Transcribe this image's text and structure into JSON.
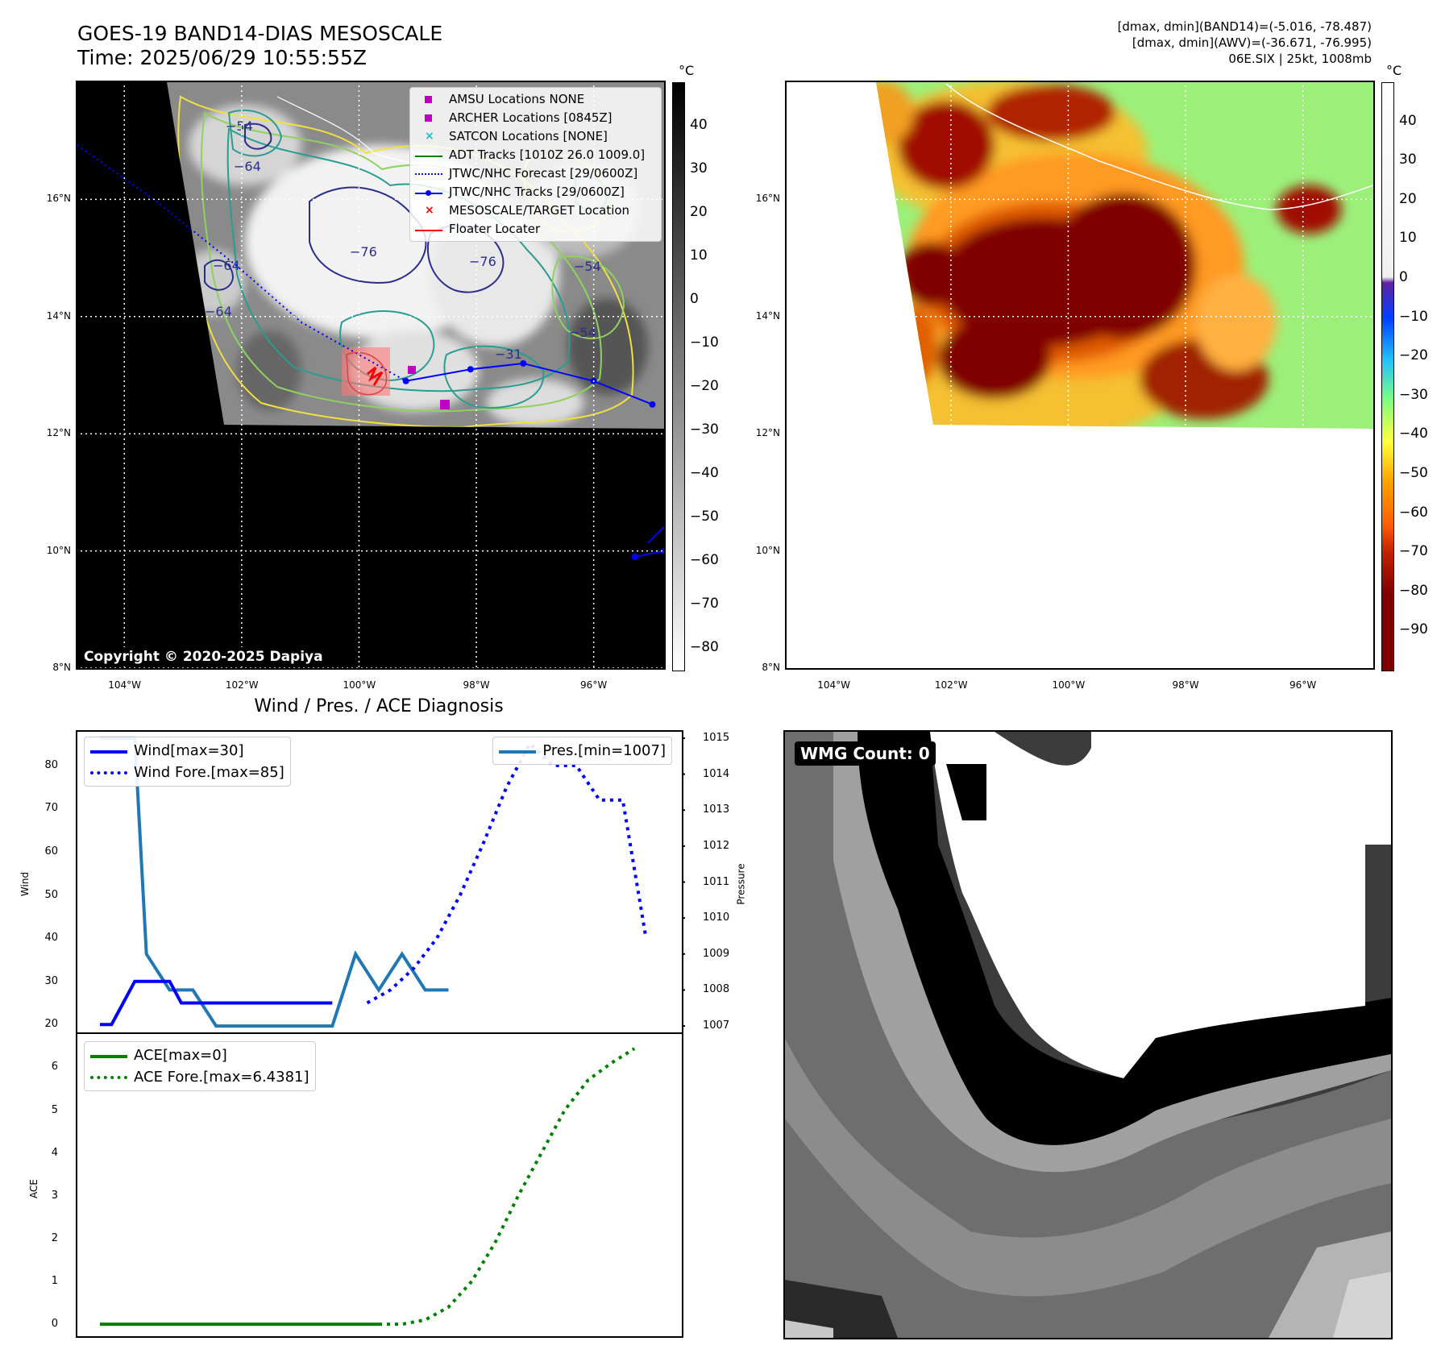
{
  "header": {
    "title_line1": "GOES-19 BAND14-DIAS MESOSCALE",
    "title_line2": "Time: 2025/06/29 10:55:55Z",
    "info_line1": "[dmax, dmin](BAND14)=(-5.016, -78.487)",
    "info_line2": "[dmax, dmin](AWV)=(-36.671, -76.995)",
    "info_line3": "06E.SIX | 25kt, 1008mb"
  },
  "map_axes": {
    "lat_labels": [
      "16°N",
      "14°N",
      "12°N",
      "10°N",
      "8°N"
    ],
    "lon_labels": [
      "104°W",
      "102°W",
      "100°W",
      "98°W",
      "96°W"
    ],
    "lat_values": [
      16,
      14,
      12,
      10,
      8
    ],
    "lon_values": [
      -104,
      -102,
      -100,
      -98,
      -96
    ],
    "extent": {
      "lon_min": -104.8,
      "lon_max": -94.8,
      "lat_min": 8.0,
      "lat_max": 18.0
    }
  },
  "ir_panel": {
    "copyright": "Copyright © 2020-2025 Dapiya",
    "contour_labels": [
      "−54",
      "−64",
      "−76",
      "−76",
      "−54",
      "−64",
      "−31",
      "−54",
      "−64"
    ],
    "colorbar": {
      "unit": "°C",
      "ticks": [
        "40",
        "30",
        "20",
        "10",
        "0",
        "−10",
        "−20",
        "−30",
        "−40",
        "−50",
        "−60",
        "−70",
        "−80"
      ],
      "range": [
        -85,
        50
      ],
      "colors": {
        "warm": "#000000",
        "cold": "#ffffff"
      }
    },
    "legend": [
      {
        "label": "AMSU Locations NONE",
        "symbol": "square",
        "color": "#c000c0"
      },
      {
        "label": "ARCHER Locations [0845Z]",
        "symbol": "square",
        "color": "#c000c0"
      },
      {
        "label": "SATCON Locations [NONE]",
        "symbol": "x",
        "color": "#17becf"
      },
      {
        "label": "ADT Tracks [1010Z 26.0 1009.0]",
        "symbol": "line",
        "color": "#008000"
      },
      {
        "label": "JTWC/NHC Forecast [29/0600Z]",
        "symbol": "dotted",
        "color": "#0000ff"
      },
      {
        "label": "JTWC/NHC Tracks [29/0600Z]",
        "symbol": "line-dot",
        "color": "#0000ff"
      },
      {
        "label": "MESOSCALE/TARGET Location",
        "symbol": "x",
        "color": "#ff0000"
      },
      {
        "label": "Floater Locater",
        "symbol": "line",
        "color": "#ff0000"
      }
    ],
    "track_points": [
      {
        "lon": -99.2,
        "lat": 12.9
      },
      {
        "lon": -98.1,
        "lat": 13.1
      },
      {
        "lon": -97.2,
        "lat": 13.2
      },
      {
        "lon": -96.0,
        "lat": 12.9
      },
      {
        "lon": -95.0,
        "lat": 12.5
      }
    ],
    "second_track": [
      {
        "lon": -95.3,
        "lat": 9.9
      },
      {
        "lon": -94.8,
        "lat": 10.0
      }
    ]
  },
  "awv_panel": {
    "colorbar": {
      "unit": "°C",
      "ticks": [
        "40",
        "30",
        "20",
        "10",
        "0",
        "−10",
        "−20",
        "−30",
        "−40",
        "−50",
        "−60",
        "−70",
        "−80",
        "−90"
      ],
      "range": [
        -100,
        50
      ],
      "colors": {
        "dark_red": "#800000",
        "orange": "#ff8c00",
        "yellow": "#ffff40",
        "green": "#80ff80",
        "cyan": "#40e0ff",
        "blue": "#0060ff",
        "purple": "#6020a0",
        "white": "#ffffff"
      }
    }
  },
  "diag_panel": {
    "title": "Wind / Pres. / ACE Diagnosis",
    "wind_ylabel": "Wind",
    "pressure_ylabel": "Pressure",
    "ace_ylabel": "ACE",
    "wind_ticks": [
      "80",
      "70",
      "60",
      "50",
      "40",
      "30",
      "20"
    ],
    "pressure_ticks": [
      "1015",
      "1014",
      "1013",
      "1012",
      "1011",
      "1010",
      "1009",
      "1008",
      "1007"
    ],
    "ace_ticks": [
      "6",
      "5",
      "4",
      "3",
      "2",
      "1",
      "0"
    ],
    "legend_wind": [
      {
        "label": "Wind[max=30]",
        "style": "solid",
        "color": "#0000ff"
      },
      {
        "label": "Wind Fore.[max=85]",
        "style": "dotted",
        "color": "#0000ff"
      }
    ],
    "legend_pres": [
      {
        "label": "Pres.[min=1007]",
        "style": "solid",
        "color": "#1f77b4"
      }
    ],
    "legend_ace": [
      {
        "label": "ACE[max=0]",
        "style": "solid",
        "color": "#008000"
      },
      {
        "label": "ACE Fore.[max=6.4381]",
        "style": "dotted",
        "color": "#008000"
      }
    ]
  },
  "chart_data": [
    {
      "type": "line",
      "title": "Wind / Pres. / ACE Diagnosis",
      "ylabel": "Wind",
      "ylim": [
        18,
        88
      ],
      "xlim": [
        0,
        24
      ],
      "series": [
        {
          "name": "Wind[max=30]",
          "x": [
            0,
            1,
            2,
            3,
            4,
            5,
            6,
            7,
            8,
            9,
            10,
            11,
            12,
            13,
            14,
            15,
            16,
            17,
            18,
            19,
            20
          ],
          "values": [
            20,
            20,
            25,
            30,
            30,
            30,
            30,
            25,
            25,
            25,
            25,
            25,
            25,
            25,
            25,
            25,
            25,
            25,
            25,
            25,
            25
          ]
        },
        {
          "name": "Wind Fore.[max=85]",
          "x": [
            11.5,
            12.5,
            13.5,
            14.5,
            15.5,
            16.5,
            17.5,
            18.5,
            19.5,
            20.5,
            21.5,
            22.5,
            23.5
          ],
          "values": [
            25,
            28,
            33,
            40,
            50,
            62,
            75,
            85,
            80,
            80,
            72,
            72,
            40
          ]
        }
      ]
    },
    {
      "type": "line",
      "ylabel": "Pressure",
      "ylim": [
        1006.8,
        1015.2
      ],
      "series": [
        {
          "name": "Pres.[min=1007]",
          "x": [
            0,
            1,
            1.5,
            2,
            3,
            4,
            5,
            6,
            7,
            8,
            9,
            10,
            11,
            12,
            13,
            14,
            15
          ],
          "values": [
            1015,
            1015,
            1015,
            1009,
            1008,
            1008,
            1007,
            1007,
            1007,
            1007,
            1007,
            1007,
            1009,
            1008,
            1009,
            1008,
            1008
          ]
        }
      ]
    },
    {
      "type": "line",
      "ylabel": "ACE",
      "ylim": [
        -0.3,
        6.8
      ],
      "series": [
        {
          "name": "ACE[max=0]",
          "x": [
            0,
            12
          ],
          "values": [
            0,
            0
          ]
        },
        {
          "name": "ACE Fore.[max=6.4381]",
          "x": [
            12,
            13,
            14,
            15,
            16,
            17,
            18,
            19,
            20,
            21,
            22,
            23
          ],
          "values": [
            0,
            0,
            0.1,
            0.4,
            1.0,
            1.9,
            3.0,
            4.0,
            5.0,
            5.7,
            6.1,
            6.44
          ]
        }
      ]
    }
  ],
  "wmg_panel": {
    "label": "WMG Count: 0"
  }
}
